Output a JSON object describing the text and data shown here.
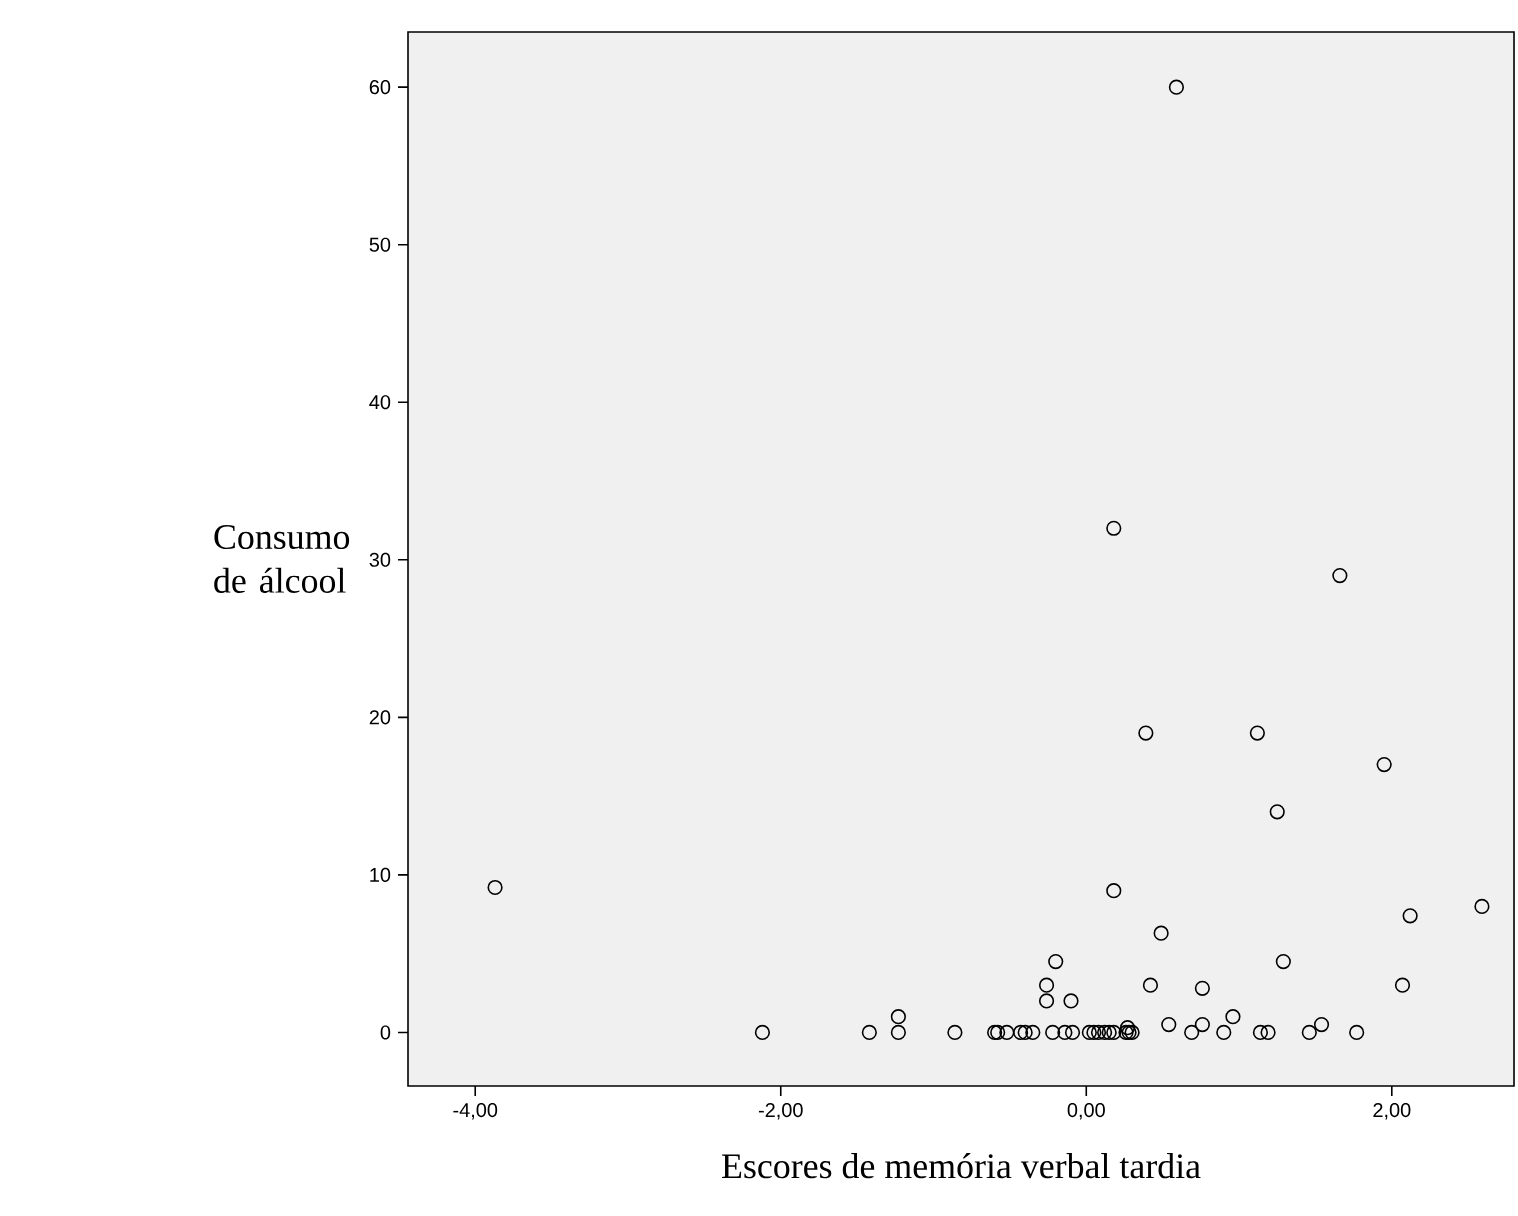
{
  "chart_data": {
    "type": "scatter",
    "xlabel": "Escores de memória verbal tardia",
    "ylabel": "Consumo de álcool",
    "xlim": [
      -4.44,
      2.8
    ],
    "ylim": [
      -3.4,
      63.5
    ],
    "xticks": [
      {
        "value": -4,
        "label": "-4,00"
      },
      {
        "value": -2,
        "label": "-2,00"
      },
      {
        "value": 0,
        "label": "0,00"
      },
      {
        "value": 2,
        "label": "2,00"
      }
    ],
    "yticks": [
      0,
      10,
      20,
      30,
      40,
      50,
      60
    ],
    "marker": "circle",
    "series": [
      {
        "color": "#000000",
        "x": [
          -3.87,
          -2.12,
          -1.42,
          -1.23,
          -1.23,
          -0.86,
          -0.6,
          -0.58,
          -0.52,
          -0.43,
          -0.4,
          -0.35,
          -0.22,
          -0.14,
          -0.09,
          0.02,
          0.05,
          0.08,
          0.12,
          0.15,
          0.18,
          0.26,
          0.28,
          0.3,
          0.27,
          -0.26,
          -0.26,
          -0.2,
          -0.1,
          0.18,
          0.39,
          0.42,
          0.49,
          0.54,
          0.69,
          0.76,
          0.76,
          0.9,
          0.96,
          1.12,
          1.14,
          1.19,
          1.25,
          1.29,
          1.46,
          1.54,
          1.77,
          1.95,
          2.07,
          2.12,
          2.59,
          0.59,
          0.18,
          1.66
        ],
        "values": [
          9.2,
          0,
          0,
          1,
          0,
          0,
          0,
          0,
          0,
          0,
          0,
          0,
          0,
          0,
          0,
          0,
          0,
          0,
          0,
          0,
          0,
          0,
          0,
          0,
          0.3,
          3,
          2,
          4.5,
          2,
          9,
          19,
          3,
          6.3,
          0.5,
          0,
          0.5,
          2.8,
          0,
          1,
          19,
          0,
          0,
          14,
          4.5,
          0,
          0.5,
          0,
          17,
          3,
          7.4,
          8,
          60,
          32,
          29
        ]
      }
    ]
  }
}
